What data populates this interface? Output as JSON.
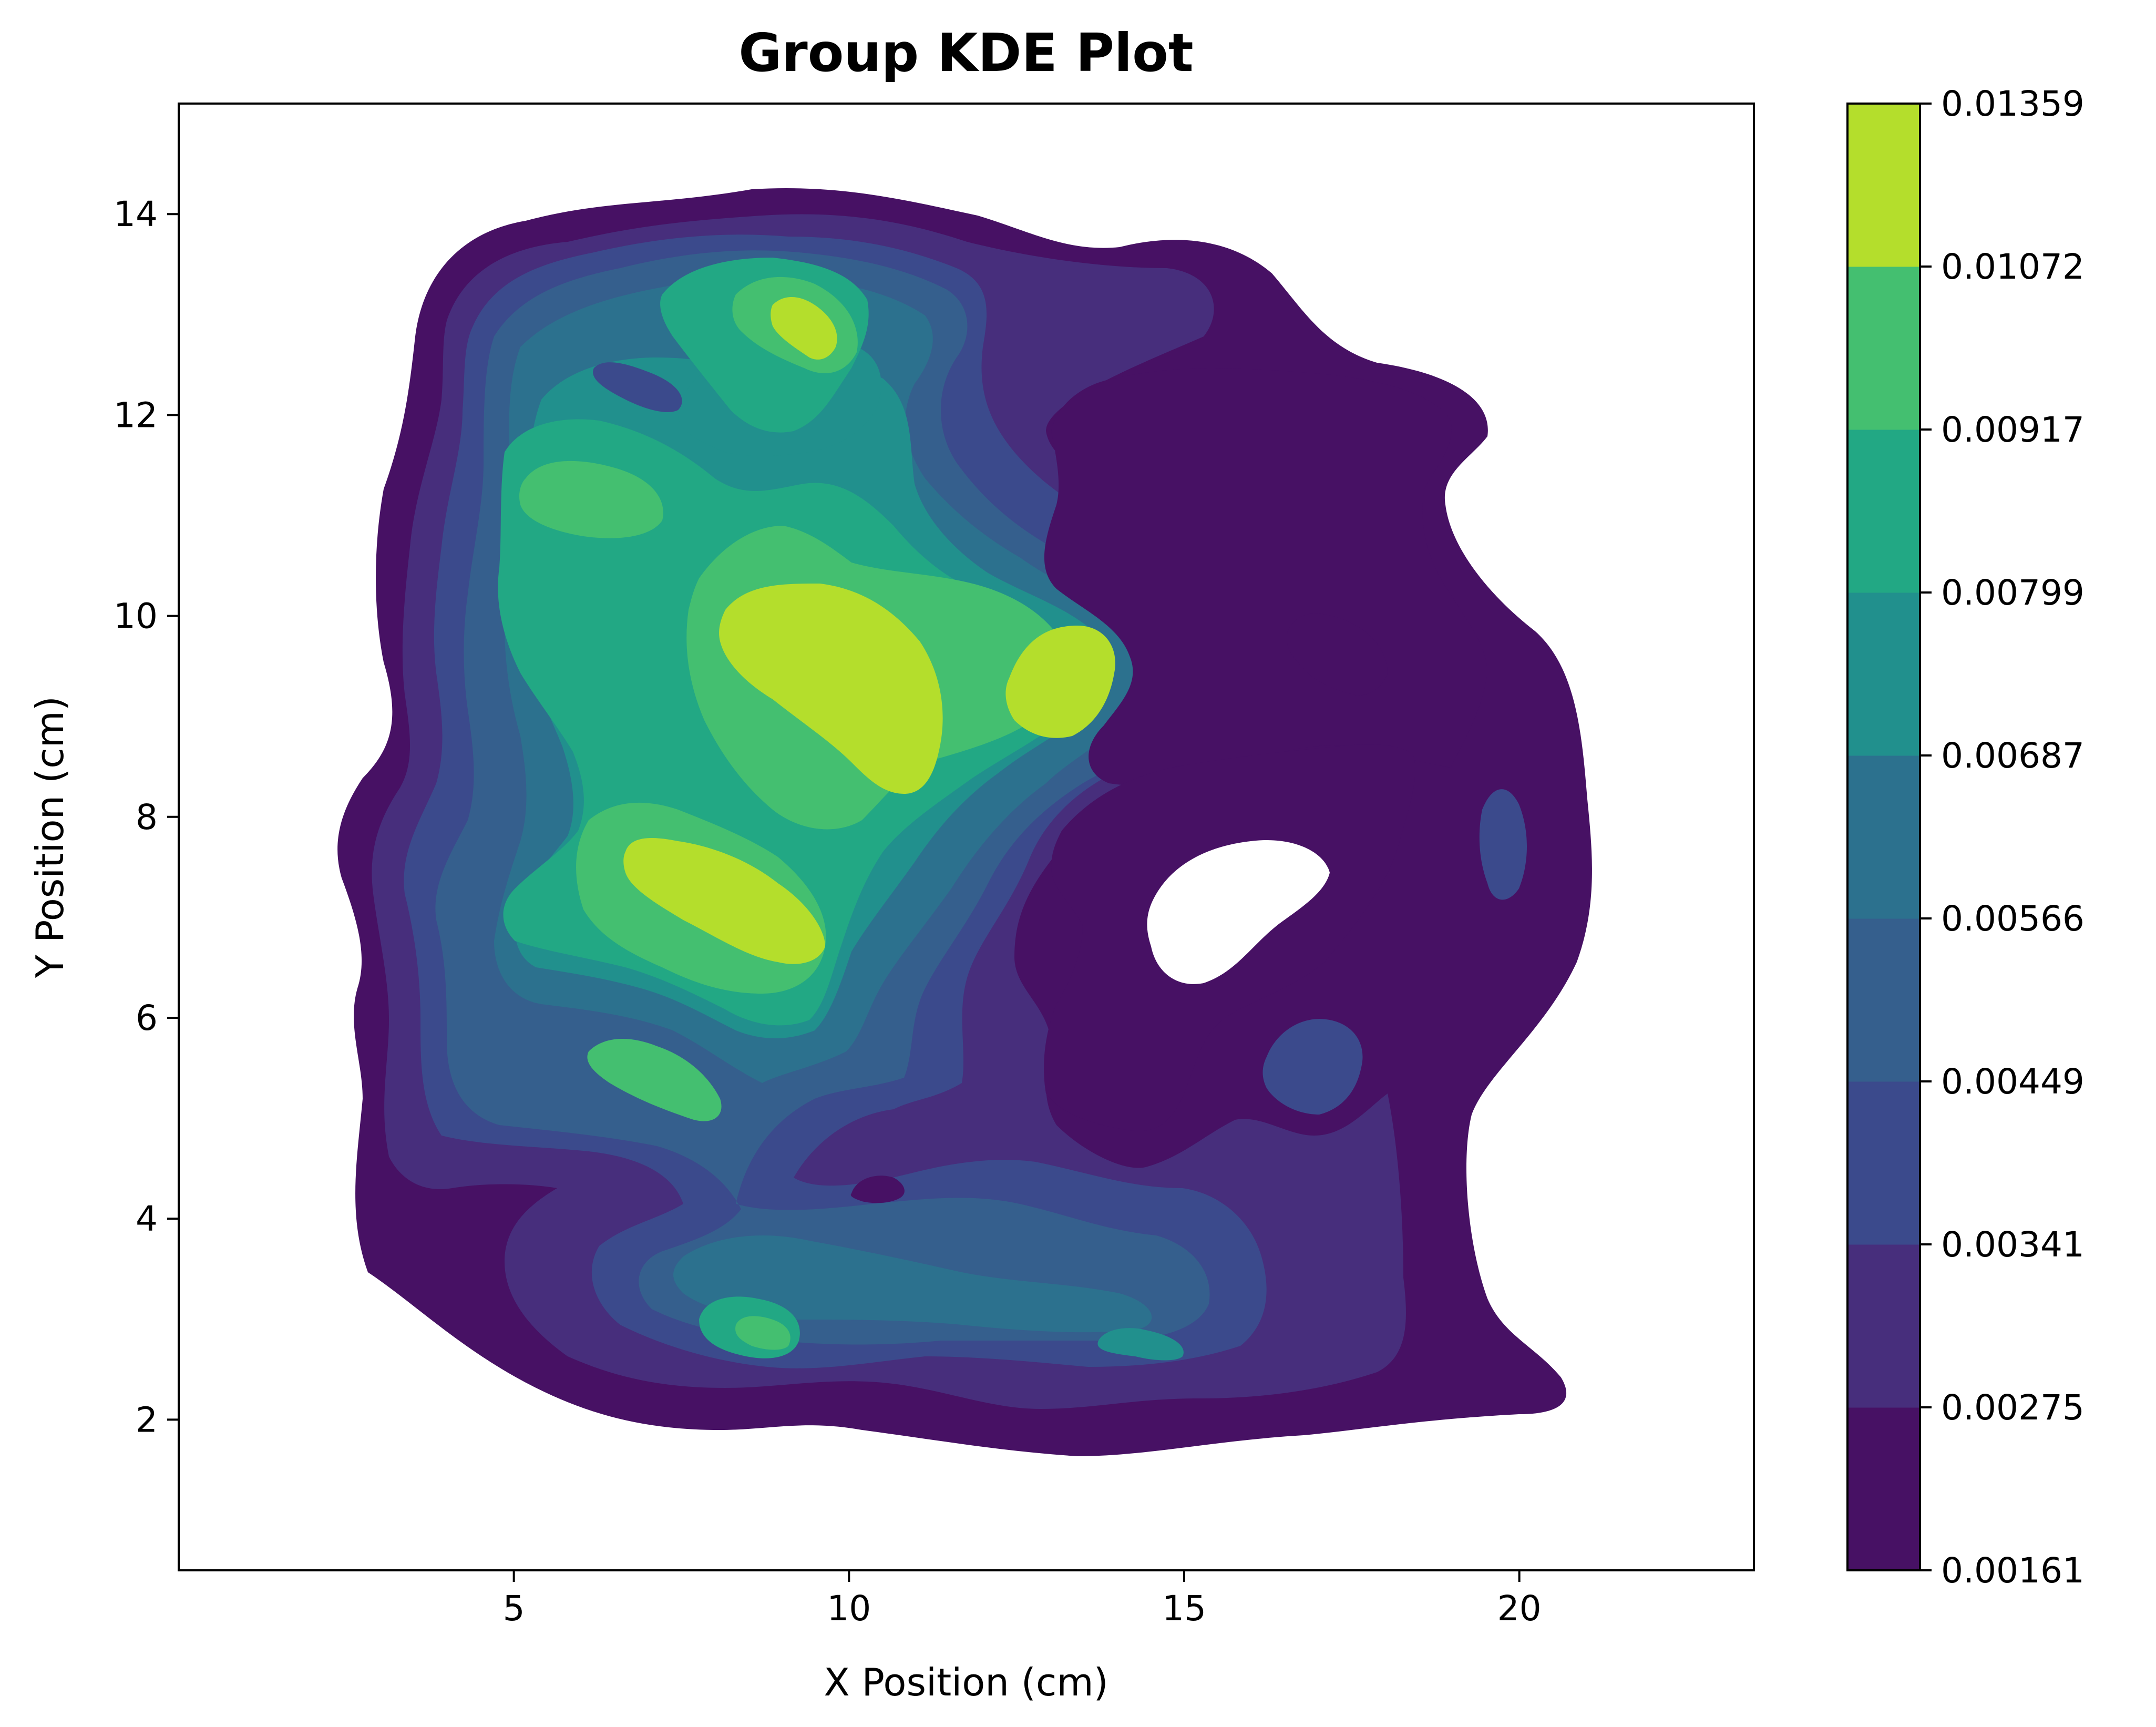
{
  "chart_data": {
    "type": "kde",
    "title": "Group KDE Plot",
    "xlabel": "X Position (cm)",
    "ylabel": "Y Position (cm)",
    "xlim": [
      0.0,
      23.5
    ],
    "ylim": [
      0.5,
      15.1
    ],
    "xticks": [
      5,
      10,
      15,
      20
    ],
    "yticks": [
      2,
      4,
      6,
      8,
      10,
      12,
      14
    ],
    "grid": false,
    "colormap": "viridis",
    "colorbar": {
      "levels": [
        "0.00161",
        "0.00275",
        "0.00341",
        "0.00449",
        "0.00566",
        "0.00687",
        "0.00799",
        "0.00917",
        "0.01072",
        "0.01359"
      ],
      "colors": [
        "#471164",
        "#472e7c",
        "#3b4a8c",
        "#355f8d",
        "#2c718e",
        "#21908d",
        "#22a884",
        "#44bf70",
        "#b4de2c"
      ]
    },
    "hotspots": [
      {
        "x": 9.6,
        "y": 9.4,
        "level": "0.01072"
      },
      {
        "x": 13.0,
        "y": 9.2,
        "level": "0.01072"
      },
      {
        "x": 8.0,
        "y": 7.2,
        "level": "0.01072"
      },
      {
        "x": 9.0,
        "y": 12.8,
        "level": "0.01072"
      },
      {
        "x": 6.2,
        "y": 11.1,
        "level": "0.00917"
      },
      {
        "x": 7.5,
        "y": 5.4,
        "level": "0.00917"
      },
      {
        "x": 8.8,
        "y": 2.9,
        "level": "0.00799"
      },
      {
        "x": 14.4,
        "y": 2.7,
        "level": "0.00687"
      },
      {
        "x": 16.9,
        "y": 5.5,
        "level": "0.00449"
      },
      {
        "x": 19.7,
        "y": 7.7,
        "level": "0.00449"
      }
    ],
    "holes": [
      {
        "x": 15.8,
        "y": 7.1,
        "note": "below lowest level"
      }
    ]
  }
}
